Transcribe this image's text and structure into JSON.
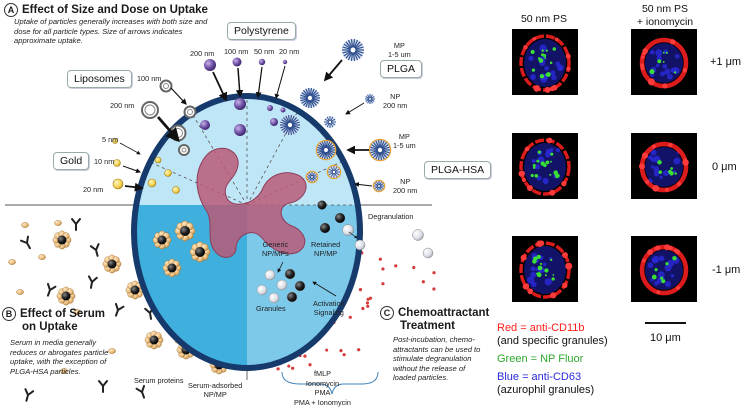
{
  "sections": {
    "a": {
      "letter": "A",
      "title": "Effect of Size and Dose on Uptake",
      "note": "Uptake of particles generally increases with both size and dose for all particle types. Size of arrows indicates approximate uptake."
    },
    "b": {
      "letter": "B",
      "title_line1": "Effect of Serum",
      "title_line2": "on Uptake",
      "note": "Serum in media generally reduces or abrogates particle uptake, with the exception of PLGA-HSA particles."
    },
    "c": {
      "letter": "C",
      "title_line1": "Chemoattractant",
      "title_line2": "Treatment",
      "note": "Post-incubation, chemo-attractants can be used to stimulate degranulation without the release of loaded particles."
    }
  },
  "particle_types": {
    "polystyrene": "Polystyrene",
    "liposomes": "Liposomes",
    "gold": "Gold",
    "plga": "PLGA",
    "plga_hsa": "PLGA-HSA"
  },
  "sizes": {
    "ps_200": "200 nm",
    "ps_100": "100 nm",
    "ps_50": "50 nm",
    "ps_20": "20 nm",
    "lipo_100": "100 nm",
    "lipo_200": "200 nm",
    "gold_5": "5 nm",
    "gold_10": "10 nm",
    "gold_20": "20 nm",
    "plga_mp_1": "MP",
    "plga_mp_2": "1-5 um",
    "plga_np_1": "NP",
    "plga_np_2": "200 nm",
    "hsa_mp_1": "MP",
    "hsa_mp_2": "1-5 um",
    "hsa_np_1": "NP",
    "hsa_np_2": "200 nm"
  },
  "cell_labels": {
    "degranulation": "Degranulation",
    "generic_1": "Generic",
    "generic_2": "NP/MPs",
    "retained_1": "Retained",
    "retained_2": "NP/MP",
    "granules": "Granules",
    "activation_1": "Activation",
    "activation_2": "Signaling",
    "serum_proteins": "Serum proteins",
    "serum_adsorbed_1": "Serum-adsorbed",
    "serum_adsorbed_2": "NP/MP",
    "stimuli": [
      "fMLP",
      "Ionomycin",
      "PMA",
      "PMA + Ionomycin"
    ]
  },
  "microscopy": {
    "col1_header": "50 nm PS",
    "col2_header_1": "50 nm PS",
    "col2_header_2": "+ ionomycin",
    "conditions": [
      "+1 μm",
      "0 μm",
      "-1 μm"
    ],
    "scale_bar": "10 μm"
  },
  "legend": {
    "red": "Red = anti-CD11b",
    "red_sub": "(and specific granules)",
    "green": "Green = NP Fluor",
    "blue": "Blue = anti-CD63",
    "blue_sub": "(azurophil granules)"
  },
  "colors": {
    "red": "#ff1a1a",
    "green": "#2ea82e",
    "blue": "#2a2ad8",
    "cell_outline": "#163a6b",
    "cell_fill_top": "#bfe6f6",
    "cell_fill_bottom": "#56b8e2",
    "nucleus": "#b85a78",
    "polystyrene": "#6a4ca0",
    "gold": "#f2d35a",
    "plga": "#2f4f8f"
  },
  "icons": [
    "antibody-icon",
    "serum-protein-icon",
    "granule-icon",
    "arrow-icon"
  ]
}
